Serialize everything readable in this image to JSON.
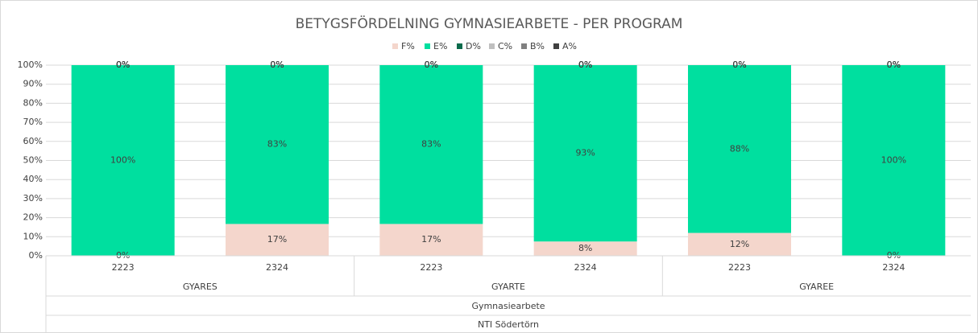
{
  "chart_data": {
    "type": "stacked_bar",
    "title": "BETYGSFÖRDELNING GYMNASIEARBETE - PER PROGRAM",
    "categories": [
      "2223",
      "2324",
      "2223",
      "2324",
      "2223",
      "2324"
    ],
    "category_levels": [
      [
        "GYARES",
        "GYARTE",
        "GYAREE"
      ],
      [
        "Gymnasiearbete"
      ],
      [
        "NTI Södertörn"
      ]
    ],
    "series": [
      {
        "name": "F%",
        "color": "#f4d6cc",
        "values": [
          0,
          16.7,
          16.7,
          7.5,
          12,
          0
        ],
        "value_labels": [
          "0%",
          "17%",
          "17%",
          "8%",
          "12%",
          "0%"
        ]
      },
      {
        "name": "E%",
        "color": "#00df9f",
        "values": [
          100,
          83.3,
          83.3,
          92.5,
          88,
          100
        ],
        "value_labels": [
          "100%",
          "83%",
          "83%",
          "93%",
          "88%",
          "100%"
        ]
      },
      {
        "name": "D%",
        "color": "#0b6b4c",
        "values": [
          0,
          0,
          0,
          0,
          0,
          0
        ],
        "value_labels": [
          "0%",
          "0%",
          "0%",
          "0%",
          "0%",
          "0%"
        ]
      },
      {
        "name": "C%",
        "color": "#bfbfbf",
        "values": [
          0,
          0,
          0,
          0,
          0,
          0
        ],
        "value_labels": [
          "0%",
          "0%",
          "0%",
          "0%",
          "0%",
          "0%"
        ]
      },
      {
        "name": "B%",
        "color": "#808080",
        "values": [
          0,
          0,
          0,
          0,
          0,
          0
        ],
        "value_labels": [
          "0%",
          "0%",
          "0%",
          "0%",
          "0%",
          "0%"
        ]
      },
      {
        "name": "A%",
        "color": "#404040",
        "values": [
          0,
          0,
          0,
          0,
          0,
          0
        ],
        "value_labels": [
          "0%",
          "0%",
          "0%",
          "0%",
          "0%",
          "0%"
        ]
      }
    ],
    "ylim": [
      0,
      100
    ],
    "yticks": [
      {
        "value": 0,
        "label": "0%"
      },
      {
        "value": 10,
        "label": "10%"
      },
      {
        "value": 20,
        "label": "20%"
      },
      {
        "value": 30,
        "label": "30%"
      },
      {
        "value": 40,
        "label": "40%"
      },
      {
        "value": 50,
        "label": "50%"
      },
      {
        "value": 60,
        "label": "60%"
      },
      {
        "value": 70,
        "label": "70%"
      },
      {
        "value": 80,
        "label": "80%"
      },
      {
        "value": 90,
        "label": "90%"
      },
      {
        "value": 100,
        "label": "100%"
      }
    ],
    "grid": true,
    "legend": "top"
  }
}
